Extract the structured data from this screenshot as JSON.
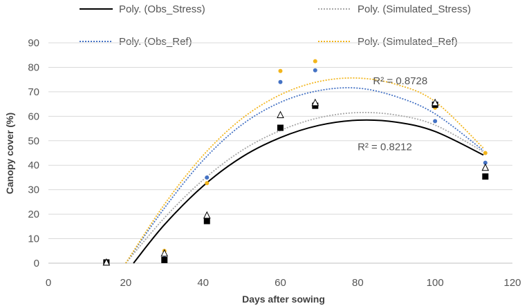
{
  "chart_data": {
    "type": "scatter",
    "title": "",
    "xlabel": "Days after sowing",
    "ylabel": "Canopy cover (%)",
    "xlim": [
      0,
      120
    ],
    "ylim": [
      0,
      90
    ],
    "xticks": [
      0,
      20,
      40,
      60,
      80,
      100,
      120
    ],
    "yticks": [
      0,
      10,
      20,
      30,
      40,
      50,
      60,
      70,
      80,
      90
    ],
    "grid": "horizontal",
    "legend_position": "top",
    "series": [
      {
        "name": "Obs_Stress",
        "marker": "square",
        "color": "#000000",
        "x": [
          15,
          30,
          41,
          60,
          69,
          100,
          113
        ],
        "y": [
          0.3,
          1.3,
          17.2,
          55.3,
          64.3,
          64.7,
          35.4
        ]
      },
      {
        "name": "Simulated_Stress",
        "marker": "triangle-open",
        "color": "#000000",
        "x": [
          15,
          30,
          41,
          60,
          69,
          100,
          113
        ],
        "y": [
          0.3,
          4.0,
          19.5,
          60.5,
          65.5,
          65.5,
          39.0
        ]
      },
      {
        "name": "Obs_Ref",
        "marker": "circle",
        "color": "#4472c4",
        "x": [
          15,
          30,
          41,
          60,
          69,
          100,
          113
        ],
        "y": [
          0.3,
          3.3,
          35.0,
          74.0,
          78.8,
          58.0,
          41.0
        ]
      },
      {
        "name": "Simulated_Ref",
        "marker": "circle",
        "color": "#f2b51c",
        "x": [
          15,
          30,
          41,
          60,
          69,
          100,
          113
        ],
        "y": [
          0.3,
          5.0,
          32.7,
          78.5,
          82.5,
          63.5,
          45.0
        ]
      }
    ],
    "trendlines": [
      {
        "name": "Poly. (Obs_Stress)",
        "style": "solid",
        "color": "#000000",
        "x": [
          22,
          30,
          40,
          50,
          60,
          70,
          80,
          90,
          100,
          112.5
        ],
        "y": [
          0,
          15.7,
          31.5,
          43.3,
          51.3,
          56.3,
          58.4,
          57.6,
          53.8,
          44.2
        ]
      },
      {
        "name": "Poly. (Simulated_Stress)",
        "style": "dotted",
        "color": "#a6a6a6",
        "x": [
          20,
          30,
          40,
          50,
          60,
          70,
          80,
          90,
          100,
          112.5
        ],
        "y": [
          0,
          18.5,
          34.0,
          46.0,
          54.2,
          59.4,
          61.5,
          60.5,
          56.4,
          45.5
        ]
      },
      {
        "name": "Poly. (Obs_Ref)",
        "style": "dotted",
        "color": "#4472c4",
        "x": [
          20,
          30,
          40,
          50,
          60,
          70,
          80,
          90,
          100,
          112.5
        ],
        "y": [
          0,
          22.5,
          42.0,
          56.5,
          65.7,
          70.5,
          71.5,
          68.0,
          61.0,
          46.0
        ]
      },
      {
        "name": "Poly. (Simulated_Ref)",
        "style": "dotted",
        "color": "#f2b51c",
        "x": [
          20,
          30,
          40,
          50,
          60,
          70,
          80,
          90,
          100,
          112.5
        ],
        "y": [
          0,
          24.0,
          44.0,
          59.0,
          68.8,
          74.2,
          75.6,
          73.0,
          66.0,
          47.0
        ]
      }
    ],
    "annotations": [
      {
        "text": "R² = 0.8728",
        "x": 91,
        "y": 74.5
      },
      {
        "text": "R² = 0.8212",
        "x": 87,
        "y": 47.5
      }
    ]
  }
}
